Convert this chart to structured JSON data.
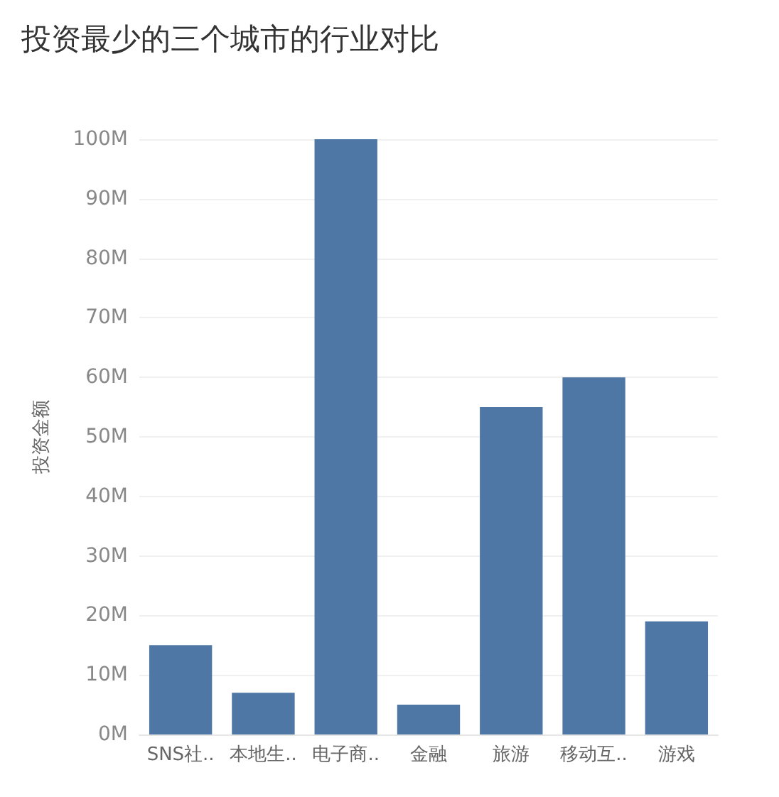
{
  "chart_data": {
    "type": "bar",
    "title": "投资最少的三个城市的行业对比",
    "ylabel": "投资金额",
    "categories": [
      "SNS社..",
      "本地生..",
      "电子商..",
      "金融",
      "旅游",
      "移动互..",
      "游戏"
    ],
    "values": [
      15,
      7,
      100,
      5,
      55,
      60,
      19
    ],
    "color": "#4e77a5",
    "ylim": [
      0,
      100
    ],
    "yticks": [
      {
        "value": 0,
        "label": "0M"
      },
      {
        "value": 10,
        "label": "10M"
      },
      {
        "value": 20,
        "label": "20M"
      },
      {
        "value": 30,
        "label": "30M"
      },
      {
        "value": 40,
        "label": "40M"
      },
      {
        "value": 50,
        "label": "50M"
      },
      {
        "value": 60,
        "label": "60M"
      },
      {
        "value": 70,
        "label": "70M"
      },
      {
        "value": 80,
        "label": "80M"
      },
      {
        "value": 90,
        "label": "90M"
      },
      {
        "value": 100,
        "label": "100M"
      }
    ],
    "grid": "y"
  }
}
